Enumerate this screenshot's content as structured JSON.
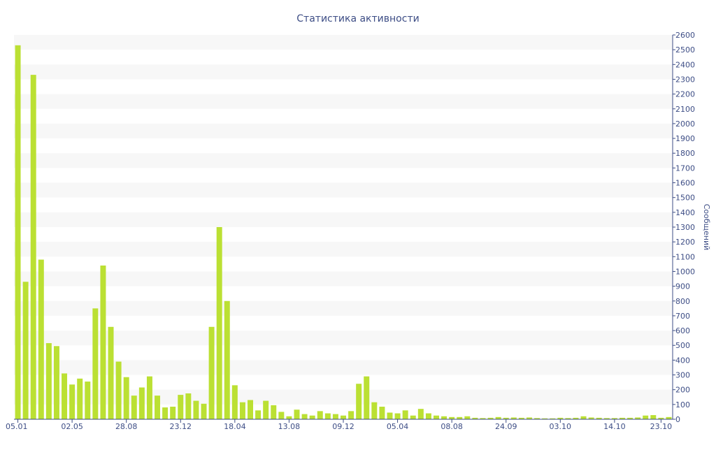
{
  "chart_data": {
    "type": "bar",
    "title": "Статистика активности",
    "ylabel": "Сообщений",
    "xlabel": "",
    "ylim": [
      0,
      2600
    ],
    "y_ticks": [
      0,
      100,
      200,
      300,
      400,
      500,
      600,
      700,
      800,
      900,
      1000,
      1100,
      1200,
      1300,
      1400,
      1500,
      1600,
      1700,
      1800,
      1900,
      2000,
      2100,
      2200,
      2300,
      2400,
      2500,
      2600
    ],
    "y_axis_position": "right",
    "grid": "horizontal alternating bands",
    "x_tick_labels": [
      {
        "label": "05.01",
        "index": 0
      },
      {
        "label": "02.05",
        "index": 7
      },
      {
        "label": "28.08",
        "index": 14
      },
      {
        "label": "23.12",
        "index": 21
      },
      {
        "label": "18.04",
        "index": 28
      },
      {
        "label": "13.08",
        "index": 35
      },
      {
        "label": "09.12",
        "index": 42
      },
      {
        "label": "05.04",
        "index": 49
      },
      {
        "label": "08.08",
        "index": 56
      },
      {
        "label": "24.09",
        "index": 63
      },
      {
        "label": "03.10",
        "index": 70
      },
      {
        "label": "14.10",
        "index": 77
      },
      {
        "label": "23.10",
        "index": 83
      }
    ],
    "values": [
      2530,
      930,
      2330,
      1080,
      515,
      495,
      310,
      235,
      275,
      255,
      750,
      1040,
      625,
      390,
      285,
      160,
      215,
      290,
      160,
      80,
      85,
      165,
      175,
      125,
      105,
      625,
      1300,
      800,
      230,
      115,
      130,
      60,
      125,
      95,
      50,
      20,
      65,
      35,
      25,
      55,
      40,
      35,
      25,
      55,
      240,
      290,
      115,
      85,
      45,
      40,
      60,
      25,
      70,
      40,
      25,
      20,
      15,
      15,
      20,
      10,
      8,
      10,
      15,
      10,
      12,
      10,
      12,
      8,
      6,
      6,
      10,
      8,
      10,
      20,
      12,
      10,
      8,
      8,
      10,
      10,
      12,
      25,
      28,
      10,
      15
    ],
    "bar_color": "#bbe033",
    "band_color": "#f7f7f7",
    "text_color": "#3d4d85"
  }
}
